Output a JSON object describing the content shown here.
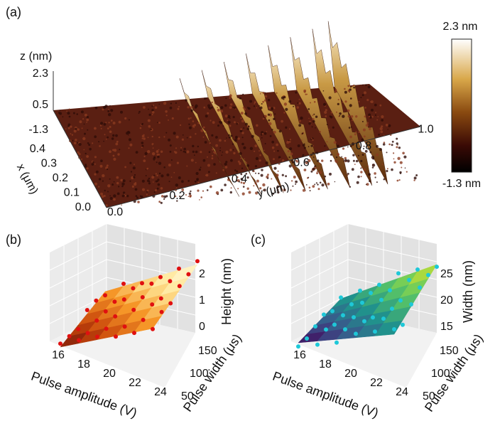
{
  "panel_a": {
    "label": "(a)",
    "z_axis": {
      "title": "z (nm)",
      "ticks": [
        "2.3",
        "0.5",
        "-1.3"
      ]
    },
    "x_axis": {
      "title": "x (μm)",
      "ticks": [
        "0.4",
        "0.3",
        "0.2",
        "0.1",
        "0.0"
      ]
    },
    "y_axis": {
      "title": "y (μm)",
      "ticks": [
        "0.0",
        "0.2",
        "0.4",
        "0.6",
        "0.8",
        "1.0"
      ]
    },
    "colorbar": {
      "max_label": "2.3 nm",
      "min_label": "-1.3 nm"
    }
  },
  "panel_b": {
    "label": "(b)",
    "x_axis": {
      "title": "Pulse amplitude (V)",
      "ticks": [
        "16",
        "18",
        "20",
        "22",
        "24"
      ]
    },
    "y_axis": {
      "title": "Pulse width (μs)",
      "ticks": [
        "50",
        "100",
        "150"
      ]
    },
    "z_axis": {
      "title": "Height (nm)",
      "ticks": [
        "0",
        "1",
        "2"
      ]
    }
  },
  "panel_c": {
    "label": "(c)",
    "x_axis": {
      "title": "Pulse amplitude (V)",
      "ticks": [
        "16",
        "18",
        "20",
        "22",
        "24"
      ]
    },
    "y_axis": {
      "title": "Pulse width (μs)",
      "ticks": [
        "50",
        "100",
        "150"
      ]
    },
    "z_axis": {
      "title": "Width (nm)",
      "ticks": [
        "15",
        "20",
        "25"
      ]
    }
  }
}
